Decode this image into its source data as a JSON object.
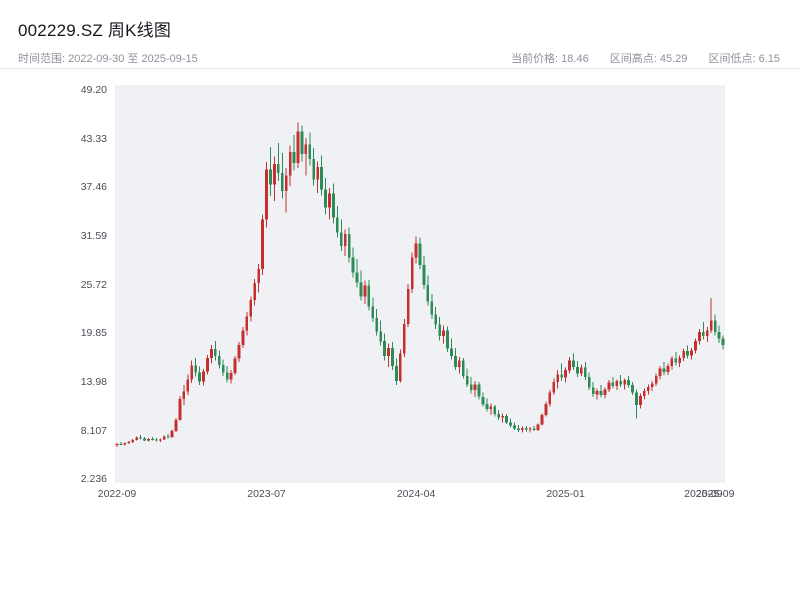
{
  "header": {
    "title": "002229.SZ 周K线图",
    "time_range": "时间范围: 2022-09-30 至 2025-09-15",
    "current_price": "当前价格: 18.46",
    "range_high": "区间高点: 45.29",
    "range_low": "区间低点: 6.15"
  },
  "chart_data": {
    "type": "candlestick",
    "title": "002229.SZ 周K线图",
    "frequency": "weekly",
    "date_start": "2022-09-30",
    "date_end": "2025-09-15",
    "current_price": 18.46,
    "range_high": 45.29,
    "range_low": 6.15,
    "ylim": [
      1.8,
      49.8
    ],
    "grid": false,
    "legend": "none",
    "plot_bg": "#f0f1f5",
    "up_color": "#c62f2f",
    "down_color": "#2e8b57",
    "y_ticks": [
      {
        "value": 2.236,
        "label": "2.236"
      },
      {
        "value": 8.107,
        "label": "8.107"
      },
      {
        "value": 13.98,
        "label": "13.98"
      },
      {
        "value": 19.85,
        "label": "19.85"
      },
      {
        "value": 25.72,
        "label": "25.72"
      },
      {
        "value": 31.59,
        "label": "31.59"
      },
      {
        "value": 37.46,
        "label": "37.46"
      },
      {
        "value": 43.33,
        "label": "43.33"
      },
      {
        "value": 49.2,
        "label": "49.20"
      }
    ],
    "x_ticks": [
      {
        "index": 0,
        "label": "2022-09"
      },
      {
        "index": 38,
        "label": "2023-07"
      },
      {
        "index": 76,
        "label": "2024-04"
      },
      {
        "index": 114,
        "label": "2025-01"
      },
      {
        "index": 149,
        "label": "2025-09"
      },
      {
        "index": 152,
        "label": "2025-09"
      }
    ],
    "candles_ohlc": [
      [
        6.4,
        6.62,
        6.15,
        6.5
      ],
      [
        6.5,
        6.75,
        6.38,
        6.45
      ],
      [
        6.45,
        6.7,
        6.3,
        6.6
      ],
      [
        6.6,
        6.85,
        6.48,
        6.75
      ],
      [
        6.75,
        7.1,
        6.65,
        7.0
      ],
      [
        7.0,
        7.42,
        6.9,
        7.28
      ],
      [
        7.28,
        7.6,
        7.05,
        7.15
      ],
      [
        7.15,
        7.32,
        6.85,
        6.95
      ],
      [
        6.95,
        7.2,
        6.78,
        7.1
      ],
      [
        7.1,
        7.35,
        6.95,
        7.05
      ],
      [
        7.05,
        7.25,
        6.8,
        6.92
      ],
      [
        6.92,
        7.15,
        6.72,
        7.06
      ],
      [
        7.06,
        7.52,
        6.96,
        7.42
      ],
      [
        7.42,
        7.7,
        7.18,
        7.35
      ],
      [
        7.35,
        8.25,
        7.25,
        8.1
      ],
      [
        8.1,
        9.65,
        7.98,
        9.4
      ],
      [
        9.4,
        12.3,
        9.32,
        11.95
      ],
      [
        11.95,
        13.6,
        11.2,
        12.85
      ],
      [
        12.85,
        14.9,
        12.4,
        14.3
      ],
      [
        14.3,
        16.6,
        13.85,
        15.95
      ],
      [
        15.95,
        16.9,
        14.65,
        15.15
      ],
      [
        15.15,
        15.85,
        13.6,
        14.05
      ],
      [
        14.05,
        15.55,
        13.55,
        15.25
      ],
      [
        15.25,
        17.25,
        14.9,
        16.85
      ],
      [
        16.85,
        18.45,
        16.2,
        17.95
      ],
      [
        17.95,
        18.9,
        16.6,
        17.1
      ],
      [
        17.1,
        17.8,
        15.6,
        16.05
      ],
      [
        16.05,
        16.7,
        14.7,
        15.1
      ],
      [
        15.1,
        15.9,
        13.9,
        14.25
      ],
      [
        14.25,
        15.4,
        13.8,
        15.05
      ],
      [
        15.05,
        17.1,
        14.85,
        16.8
      ],
      [
        16.8,
        18.8,
        16.4,
        18.45
      ],
      [
        18.45,
        20.6,
        18.1,
        20.2
      ],
      [
        20.2,
        22.4,
        19.6,
        21.9
      ],
      [
        21.9,
        24.3,
        21.3,
        23.85
      ],
      [
        23.85,
        26.4,
        23.2,
        25.9
      ],
      [
        25.9,
        28.2,
        24.8,
        27.6
      ],
      [
        27.6,
        34.2,
        26.9,
        33.6
      ],
      [
        33.6,
        40.5,
        32.6,
        39.6
      ],
      [
        39.6,
        42.3,
        36.4,
        37.8
      ],
      [
        37.8,
        41.2,
        35.8,
        40.3
      ],
      [
        40.3,
        42.8,
        38.2,
        39.2
      ],
      [
        39.2,
        41.6,
        36.1,
        37.0
      ],
      [
        37.0,
        39.8,
        34.4,
        38.9
      ],
      [
        38.9,
        42.5,
        37.6,
        41.7
      ],
      [
        41.7,
        43.8,
        39.5,
        40.4
      ],
      [
        40.4,
        45.29,
        39.8,
        44.2
      ],
      [
        44.2,
        44.9,
        40.6,
        41.5
      ],
      [
        41.5,
        43.4,
        38.9,
        42.6
      ],
      [
        42.6,
        44.1,
        40.1,
        40.9
      ],
      [
        40.9,
        42.2,
        37.7,
        38.4
      ],
      [
        38.4,
        40.6,
        36.8,
        39.9
      ],
      [
        39.9,
        41.3,
        36.5,
        37.2
      ],
      [
        37.2,
        38.6,
        34.2,
        35.0
      ],
      [
        35.0,
        37.4,
        33.6,
        36.7
      ],
      [
        36.7,
        37.9,
        33.1,
        33.8
      ],
      [
        33.8,
        35.2,
        31.4,
        32.0
      ],
      [
        32.0,
        33.6,
        29.8,
        30.4
      ],
      [
        30.4,
        32.4,
        29.2,
        31.8
      ],
      [
        31.8,
        32.6,
        28.4,
        29.0
      ],
      [
        29.0,
        30.2,
        26.6,
        27.2
      ],
      [
        27.2,
        28.8,
        25.4,
        26.0
      ],
      [
        26.0,
        27.4,
        23.8,
        24.3
      ],
      [
        24.3,
        26.2,
        23.4,
        25.6
      ],
      [
        25.6,
        26.3,
        22.6,
        23.1
      ],
      [
        23.1,
        24.2,
        21.2,
        21.7
      ],
      [
        21.7,
        22.8,
        19.6,
        20.1
      ],
      [
        20.1,
        21.4,
        18.4,
        18.9
      ],
      [
        18.9,
        19.8,
        16.6,
        17.1
      ],
      [
        17.1,
        18.6,
        15.8,
        18.1
      ],
      [
        18.1,
        18.8,
        15.4,
        15.9
      ],
      [
        15.9,
        16.8,
        13.6,
        14.1
      ],
      [
        14.1,
        17.9,
        13.9,
        17.4
      ],
      [
        17.4,
        21.6,
        17.0,
        21.0
      ],
      [
        21.0,
        25.8,
        20.6,
        25.2
      ],
      [
        25.2,
        29.6,
        24.7,
        29.0
      ],
      [
        29.0,
        31.5,
        28.3,
        30.7
      ],
      [
        30.7,
        31.4,
        27.6,
        28.1
      ],
      [
        28.1,
        29.2,
        25.2,
        25.7
      ],
      [
        25.7,
        26.8,
        23.2,
        23.7
      ],
      [
        23.7,
        24.6,
        21.6,
        22.1
      ],
      [
        22.1,
        23.0,
        20.4,
        20.9
      ],
      [
        20.9,
        21.8,
        19.0,
        19.5
      ],
      [
        19.5,
        20.8,
        18.6,
        20.2
      ],
      [
        20.2,
        20.7,
        17.6,
        18.0
      ],
      [
        18.0,
        19.2,
        16.7,
        17.1
      ],
      [
        17.1,
        18.1,
        15.4,
        15.8
      ],
      [
        15.8,
        17.0,
        15.0,
        16.6
      ],
      [
        16.6,
        16.9,
        14.4,
        14.7
      ],
      [
        14.7,
        15.6,
        13.4,
        13.7
      ],
      [
        13.7,
        14.6,
        12.6,
        13.0
      ],
      [
        13.0,
        14.1,
        12.2,
        13.7
      ],
      [
        13.7,
        14.0,
        11.9,
        12.2
      ],
      [
        12.2,
        12.7,
        11.0,
        11.3
      ],
      [
        11.3,
        12.0,
        10.4,
        10.7
      ],
      [
        10.7,
        11.4,
        10.0,
        11.0
      ],
      [
        11.0,
        11.2,
        9.8,
        10.1
      ],
      [
        10.1,
        10.6,
        9.4,
        9.7
      ],
      [
        9.7,
        10.2,
        9.1,
        9.9
      ],
      [
        9.9,
        10.1,
        8.9,
        9.1
      ],
      [
        9.1,
        9.6,
        8.5,
        8.75
      ],
      [
        8.75,
        9.1,
        8.2,
        8.4
      ],
      [
        8.4,
        8.8,
        7.95,
        8.2
      ],
      [
        8.2,
        8.6,
        7.9,
        8.45
      ],
      [
        8.45,
        8.7,
        8.0,
        8.25
      ],
      [
        8.25,
        8.55,
        7.9,
        8.35
      ],
      [
        8.35,
        8.65,
        8.05,
        8.2
      ],
      [
        8.2,
        9.0,
        8.1,
        8.85
      ],
      [
        8.85,
        10.2,
        8.75,
        10.0
      ],
      [
        10.0,
        11.6,
        9.8,
        11.3
      ],
      [
        11.3,
        13.0,
        11.0,
        12.7
      ],
      [
        12.7,
        14.4,
        12.4,
        14.0
      ],
      [
        14.0,
        15.4,
        13.2,
        14.9
      ],
      [
        14.9,
        16.2,
        14.1,
        14.5
      ],
      [
        14.5,
        15.7,
        13.9,
        15.4
      ],
      [
        15.4,
        17.0,
        15.0,
        16.6
      ],
      [
        16.6,
        17.4,
        15.4,
        15.8
      ],
      [
        15.8,
        16.5,
        14.6,
        15.0
      ],
      [
        15.0,
        16.1,
        14.7,
        15.7
      ],
      [
        15.7,
        16.4,
        14.2,
        14.6
      ],
      [
        14.6,
        15.1,
        13.0,
        13.3
      ],
      [
        13.3,
        14.0,
        12.2,
        12.5
      ],
      [
        12.5,
        13.2,
        11.9,
        12.9
      ],
      [
        12.9,
        13.6,
        12.1,
        12.4
      ],
      [
        12.4,
        13.3,
        12.0,
        13.1
      ],
      [
        13.1,
        14.2,
        12.8,
        13.9
      ],
      [
        13.9,
        14.6,
        13.2,
        13.5
      ],
      [
        13.5,
        14.3,
        13.0,
        14.1
      ],
      [
        14.1,
        14.8,
        13.4,
        13.7
      ],
      [
        13.7,
        14.4,
        13.1,
        14.2
      ],
      [
        14.2,
        14.7,
        13.3,
        13.6
      ],
      [
        13.6,
        14.0,
        12.4,
        12.7
      ],
      [
        12.7,
        13.1,
        9.6,
        11.2
      ],
      [
        11.2,
        12.6,
        10.8,
        12.3
      ],
      [
        12.3,
        13.2,
        11.9,
        12.9
      ],
      [
        12.9,
        13.7,
        12.5,
        13.4
      ],
      [
        13.4,
        14.1,
        12.9,
        13.8
      ],
      [
        13.8,
        15.0,
        13.5,
        14.7
      ],
      [
        14.7,
        15.9,
        14.3,
        15.6
      ],
      [
        15.6,
        16.4,
        14.8,
        15.2
      ],
      [
        15.2,
        16.2,
        14.8,
        15.9
      ],
      [
        15.9,
        17.1,
        15.5,
        16.8
      ],
      [
        16.8,
        17.6,
        16.0,
        16.3
      ],
      [
        16.3,
        17.2,
        15.8,
        16.9
      ],
      [
        16.9,
        18.0,
        16.5,
        17.7
      ],
      [
        17.7,
        18.4,
        16.8,
        17.2
      ],
      [
        17.2,
        18.1,
        16.7,
        17.8
      ],
      [
        17.8,
        19.2,
        17.4,
        18.9
      ],
      [
        18.9,
        20.4,
        18.5,
        20.0
      ],
      [
        20.0,
        21.2,
        19.1,
        19.5
      ],
      [
        19.5,
        20.6,
        18.8,
        20.2
      ],
      [
        20.2,
        24.1,
        19.9,
        21.4
      ],
      [
        21.4,
        22.1,
        19.6,
        20.0
      ],
      [
        20.0,
        20.8,
        18.7,
        19.2
      ],
      [
        19.2,
        19.6,
        17.9,
        18.46
      ]
    ]
  }
}
